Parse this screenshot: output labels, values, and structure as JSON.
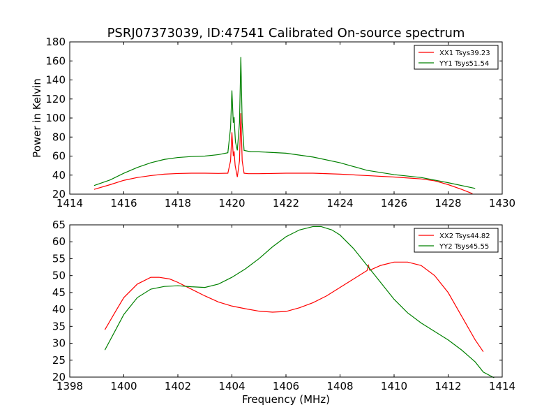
{
  "title": "PSRJ07373039, ID:47541 Calibrated On-source spectrum",
  "chart_data": [
    {
      "type": "line",
      "ylabel": "Power in Kelvin",
      "xlabel": "",
      "xlim": [
        1414,
        1430
      ],
      "ylim": [
        20,
        180
      ],
      "xticks": [
        1414,
        1416,
        1418,
        1420,
        1422,
        1424,
        1426,
        1428,
        1430
      ],
      "yticks": [
        20,
        40,
        60,
        80,
        100,
        120,
        140,
        160,
        180
      ],
      "legend": "top-right",
      "series": [
        {
          "name": "XX1 Tsys39.23",
          "color": "#ff0000",
          "points": [
            [
              1414.9,
              25
            ],
            [
              1415.5,
              30
            ],
            [
              1416,
              34.5
            ],
            [
              1416.5,
              37.5
            ],
            [
              1417,
              39.5
            ],
            [
              1417.5,
              41
            ],
            [
              1418,
              41.7
            ],
            [
              1418.5,
              42
            ],
            [
              1419,
              42
            ],
            [
              1419.5,
              41.8
            ],
            [
              1419.85,
              42
            ],
            [
              1419.95,
              55
            ],
            [
              1420.0,
              85
            ],
            [
              1420.05,
              60
            ],
            [
              1420.08,
              65
            ],
            [
              1420.12,
              50
            ],
            [
              1420.2,
              38
            ],
            [
              1420.28,
              55
            ],
            [
              1420.33,
              105
            ],
            [
              1420.38,
              55
            ],
            [
              1420.45,
              42
            ],
            [
              1420.6,
              41.5
            ],
            [
              1421,
              41.5
            ],
            [
              1422,
              42
            ],
            [
              1423,
              42
            ],
            [
              1424,
              41
            ],
            [
              1425,
              39.5
            ],
            [
              1426,
              38
            ],
            [
              1427,
              36
            ],
            [
              1427.5,
              34
            ],
            [
              1428,
              30
            ],
            [
              1428.5,
              25
            ],
            [
              1428.9,
              20.5
            ]
          ]
        },
        {
          "name": "YY1 Tsys51.54",
          "color": "#008000",
          "points": [
            [
              1414.9,
              29
            ],
            [
              1415.5,
              35
            ],
            [
              1416,
              42
            ],
            [
              1416.5,
              48
            ],
            [
              1417,
              53
            ],
            [
              1417.5,
              56.5
            ],
            [
              1418,
              58.5
            ],
            [
              1418.5,
              59.5
            ],
            [
              1419,
              60
            ],
            [
              1419.5,
              61.5
            ],
            [
              1419.85,
              63.5
            ],
            [
              1419.95,
              90
            ],
            [
              1420.0,
              129
            ],
            [
              1420.05,
              95
            ],
            [
              1420.08,
              101
            ],
            [
              1420.13,
              75
            ],
            [
              1420.2,
              66
            ],
            [
              1420.28,
              95
            ],
            [
              1420.33,
              164
            ],
            [
              1420.38,
              95
            ],
            [
              1420.45,
              66
            ],
            [
              1420.7,
              64.5
            ],
            [
              1421,
              64.5
            ],
            [
              1422,
              63
            ],
            [
              1423,
              59
            ],
            [
              1424,
              53
            ],
            [
              1425,
              45
            ],
            [
              1426,
              40.5
            ],
            [
              1427,
              37.5
            ],
            [
              1428,
              32
            ],
            [
              1429,
              26
            ]
          ]
        }
      ]
    },
    {
      "type": "line",
      "ylabel": "",
      "xlabel": "Frequency (MHz)",
      "xlim": [
        1398,
        1414
      ],
      "ylim": [
        20,
        65
      ],
      "xticks": [
        1398,
        1400,
        1402,
        1404,
        1406,
        1408,
        1410,
        1412,
        1414
      ],
      "yticks": [
        20,
        25,
        30,
        35,
        40,
        45,
        50,
        55,
        60,
        65
      ],
      "legend": "top-right",
      "series": [
        {
          "name": "XX2 Tsys44.82",
          "color": "#ff0000",
          "points": [
            [
              1399.3,
              34
            ],
            [
              1399.7,
              39.5
            ],
            [
              1400,
              43.5
            ],
            [
              1400.5,
              47.5
            ],
            [
              1401,
              49.5
            ],
            [
              1401.3,
              49.5
            ],
            [
              1401.7,
              49
            ],
            [
              1402,
              48
            ],
            [
              1402.5,
              46
            ],
            [
              1403,
              44
            ],
            [
              1403.5,
              42.2
            ],
            [
              1404,
              41
            ],
            [
              1404.5,
              40.2
            ],
            [
              1405,
              39.5
            ],
            [
              1405.5,
              39.2
            ],
            [
              1406,
              39.4
            ],
            [
              1406.5,
              40.5
            ],
            [
              1407,
              42
            ],
            [
              1407.5,
              44
            ],
            [
              1408,
              46.5
            ],
            [
              1408.5,
              49
            ],
            [
              1409,
              51.5
            ],
            [
              1409.05,
              53
            ],
            [
              1409.1,
              51.6
            ],
            [
              1409.5,
              53
            ],
            [
              1410,
              54
            ],
            [
              1410.5,
              54
            ],
            [
              1411,
              53
            ],
            [
              1411.5,
              50
            ],
            [
              1412,
              45
            ],
            [
              1412.5,
              38
            ],
            [
              1413,
              31
            ],
            [
              1413.3,
              27.5
            ]
          ]
        },
        {
          "name": "YY2 Tsys45.55",
          "color": "#008000",
          "points": [
            [
              1399.3,
              28
            ],
            [
              1399.7,
              34
            ],
            [
              1400,
              38.5
            ],
            [
              1400.5,
              43.5
            ],
            [
              1401,
              46
            ],
            [
              1401.5,
              46.8
            ],
            [
              1402,
              47
            ],
            [
              1402.5,
              46.7
            ],
            [
              1403,
              46.5
            ],
            [
              1403.5,
              47.5
            ],
            [
              1404,
              49.5
            ],
            [
              1404.5,
              52
            ],
            [
              1405,
              55
            ],
            [
              1405.5,
              58.5
            ],
            [
              1406,
              61.5
            ],
            [
              1406.5,
              63.5
            ],
            [
              1407,
              64.5
            ],
            [
              1407.3,
              64.5
            ],
            [
              1407.7,
              63.5
            ],
            [
              1408,
              62
            ],
            [
              1408.5,
              58
            ],
            [
              1409,
              53
            ],
            [
              1409.5,
              48
            ],
            [
              1410,
              43
            ],
            [
              1410.5,
              39
            ],
            [
              1411,
              36
            ],
            [
              1411.5,
              33.5
            ],
            [
              1412,
              31
            ],
            [
              1412.5,
              28
            ],
            [
              1413,
              24.5
            ],
            [
              1413.3,
              21.5
            ],
            [
              1413.7,
              19.8
            ]
          ]
        }
      ]
    }
  ]
}
